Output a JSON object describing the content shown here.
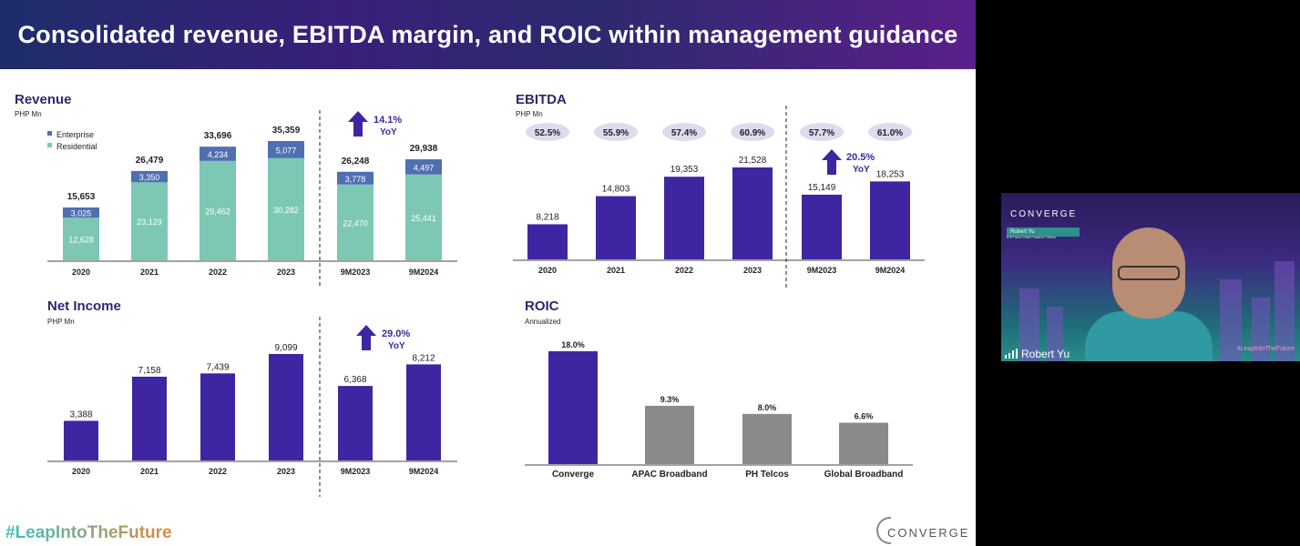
{
  "slide": {
    "title": "Consolidated revenue, EBITDA margin, and ROIC within management guidance",
    "hashtag": "#LeapIntoTheFuture",
    "logo": "CONVERGE"
  },
  "webcam": {
    "participant_name": "Robert Yu",
    "overlay_brand": "CONVERGE",
    "overlay_name": "Robert Yu",
    "overlay_subtitle": "EVP and Chief Finance Officer",
    "overlay_hashtag": "#LeapIntoTheFuture"
  },
  "colors": {
    "purple": "#3f25a2",
    "teal": "#7cc8b5",
    "enterprise": "#4f6fb0",
    "gray": "#8a8a8a",
    "pill": "#dcdcf0",
    "arrow": "#3f25a2"
  },
  "chart_data": [
    {
      "type": "bar",
      "stacked": true,
      "title": "Revenue",
      "subtitle": "PHP Mn",
      "categories": [
        "2020",
        "2021",
        "2022",
        "2023",
        "9M2023",
        "9M2024"
      ],
      "series": [
        {
          "name": "Residential",
          "values": [
            12628,
            23129,
            29462,
            30282,
            22470,
            25441
          ],
          "labels": [
            "12,628",
            "23,129",
            "29,462",
            "30,282",
            "22,470",
            "25,441"
          ]
        },
        {
          "name": "Enterprise",
          "values": [
            3025,
            3350,
            4234,
            5077,
            3778,
            4497
          ],
          "labels": [
            "3,025",
            "3,350",
            "4,234",
            "5,077",
            "3,778",
            "4,497"
          ]
        }
      ],
      "totals": [
        "15,653",
        "26,479",
        "33,696",
        "35,359",
        "26,248",
        "29,938"
      ],
      "growth": {
        "value": "14.1%",
        "label": "YoY"
      },
      "legend": "top-left"
    },
    {
      "type": "bar",
      "title": "EBITDA",
      "subtitle": "PHP Mn",
      "categories": [
        "2020",
        "2021",
        "2022",
        "2023",
        "9M2023",
        "9M2024"
      ],
      "values": [
        8218,
        14803,
        19353,
        21528,
        15149,
        18253
      ],
      "labels": [
        "8,218",
        "14,803",
        "19,353",
        "21,528",
        "15,149",
        "18,253"
      ],
      "margins": [
        "52.5%",
        "55.9%",
        "57.4%",
        "60.9%",
        "57.7%",
        "61.0%"
      ],
      "growth": {
        "value": "20.5%",
        "label": "YoY"
      }
    },
    {
      "type": "bar",
      "title": "Net Income",
      "subtitle": "PHP Mn",
      "categories": [
        "2020",
        "2021",
        "2022",
        "2023",
        "9M2023",
        "9M2024"
      ],
      "values": [
        3388,
        7158,
        7439,
        9099,
        6368,
        8212
      ],
      "labels": [
        "3,388",
        "7,158",
        "7,439",
        "9,099",
        "6,368",
        "8,212"
      ],
      "growth": {
        "value": "29.0%",
        "label": "YoY"
      }
    },
    {
      "type": "bar",
      "title": "ROIC",
      "subtitle": "Annualized",
      "categories": [
        "Converge",
        "APAC Broadband",
        "PH Telcos",
        "Global Broadband"
      ],
      "values": [
        18.0,
        9.3,
        8.0,
        6.6
      ],
      "labels": [
        "18.0%",
        "9.3%",
        "8.0%",
        "6.6%"
      ]
    }
  ]
}
